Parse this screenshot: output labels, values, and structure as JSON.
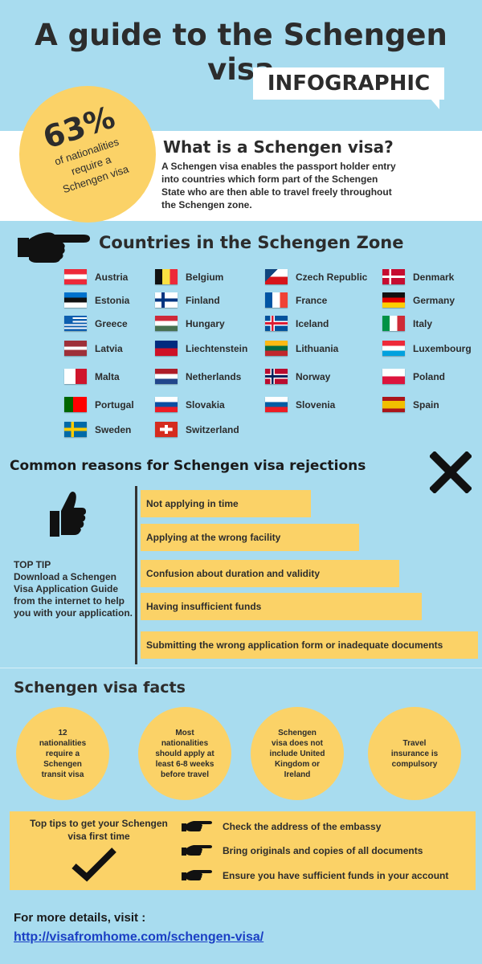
{
  "title": "A guide to the Schengen visa",
  "badge": "INFOGRAPHIC",
  "stat": {
    "value": "63%",
    "line1": "of nationalities",
    "line2": "require a",
    "line3": "Schengen visa"
  },
  "what_is": {
    "heading": "What is a Schengen visa?",
    "text": "A Schengen visa enables the passport holder entry into countries which form part of the Schengen State who are then able to travel freely throughout the Schengen zone."
  },
  "countries_heading": "Countries in the Schengen Zone",
  "countries": [
    {
      "name": "Austria",
      "flag": "austria"
    },
    {
      "name": "Belgium",
      "flag": "belgium"
    },
    {
      "name": "Czech Republic",
      "flag": "czech"
    },
    {
      "name": "Denmark",
      "flag": "denmark"
    },
    {
      "name": "Estonia",
      "flag": "estonia"
    },
    {
      "name": "Finland",
      "flag": "finland"
    },
    {
      "name": "France",
      "flag": "france"
    },
    {
      "name": "Germany",
      "flag": "germany"
    },
    {
      "name": "Greece",
      "flag": "greece"
    },
    {
      "name": "Hungary",
      "flag": "hungary"
    },
    {
      "name": "Iceland",
      "flag": "iceland"
    },
    {
      "name": "Italy",
      "flag": "italy"
    },
    {
      "name": "Latvia",
      "flag": "latvia"
    },
    {
      "name": "Liechtenstein",
      "flag": "liechtenstein"
    },
    {
      "name": "Lithuania",
      "flag": "lithuania"
    },
    {
      "name": "Luxembourg",
      "flag": "luxembourg"
    },
    {
      "name": "Malta",
      "flag": "malta"
    },
    {
      "name": "Netherlands",
      "flag": "netherlands"
    },
    {
      "name": "Norway",
      "flag": "norway"
    },
    {
      "name": "Poland",
      "flag": "poland"
    },
    {
      "name": "Portugal",
      "flag": "portugal"
    },
    {
      "name": "Slovakia",
      "flag": "slovakia"
    },
    {
      "name": "Slovenia",
      "flag": "slovenia"
    },
    {
      "name": "Spain",
      "flag": "spain"
    },
    {
      "name": "Sweden",
      "flag": "sweden"
    },
    {
      "name": "Switzerland",
      "flag": "switzerland"
    }
  ],
  "reasons_heading": "Common reasons for Schengen visa rejections",
  "top_tip": {
    "label": "TOP TIP",
    "text": "Download  a Schengen Visa Application Guide from the internet to help you with your application."
  },
  "reasons": [
    "Not applying in time",
    "Applying at the wrong facility",
    "Confusion about duration and validity",
    "Having insufficient funds",
    "Submitting the wrong application form or inadequate documents"
  ],
  "facts_heading": "Schengen visa facts",
  "facts": [
    "12 nationalities require a Schengen transit visa",
    "Most nationalities should apply at least 6-8 weeks before travel",
    "Schengen visa does not include United Kingdom or Ireland",
    "Travel insurance is compulsory"
  ],
  "tips_heading": "Top tips to get your Schengen visa first time",
  "tips": [
    "Check the address of the embassy",
    "Bring originals and copies of all documents",
    "Ensure you have sufficient funds in your account"
  ],
  "more_details": "For more details, visit :",
  "link": "http://visafromhome.com/schengen-visa/",
  "colors": {
    "background": "#a8dcef",
    "accent": "#fbd267",
    "text": "#2c2c2c"
  },
  "icons": [
    "pointing-hand-icon",
    "x-mark-icon",
    "thumbs-up-icon",
    "check-mark-icon"
  ]
}
